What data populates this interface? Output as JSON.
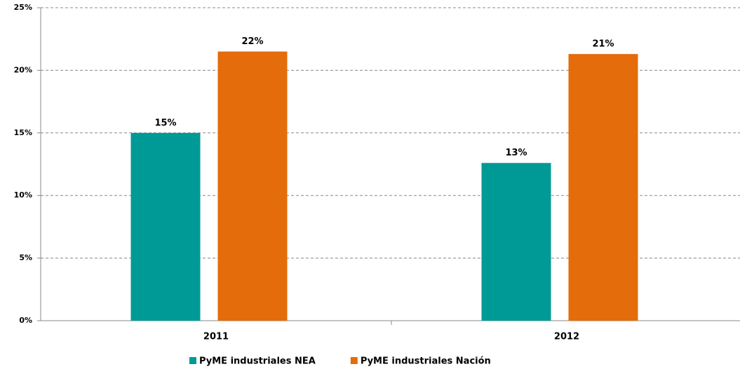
{
  "chart_data": {
    "type": "bar",
    "categories": [
      "2011",
      "2012"
    ],
    "series": [
      {
        "name": "PyME industriales NEA",
        "color": "#009a96",
        "values": [
          15.0,
          12.6
        ],
        "value_labels": [
          "15%",
          "13%"
        ]
      },
      {
        "name": "PyME industriales Nación",
        "color": "#e46c0a",
        "values": [
          21.5,
          21.3
        ],
        "value_labels": [
          "22%",
          "21%"
        ]
      }
    ],
    "ylim": [
      0,
      25
    ],
    "yticks": [
      {
        "value": 0,
        "label": "0%"
      },
      {
        "value": 5,
        "label": "5%"
      },
      {
        "value": 10,
        "label": "10%"
      },
      {
        "value": 15,
        "label": "15%"
      },
      {
        "value": 20,
        "label": "20%"
      },
      {
        "value": 25,
        "label": "25%"
      }
    ],
    "grid": true,
    "legend": "bottom"
  }
}
